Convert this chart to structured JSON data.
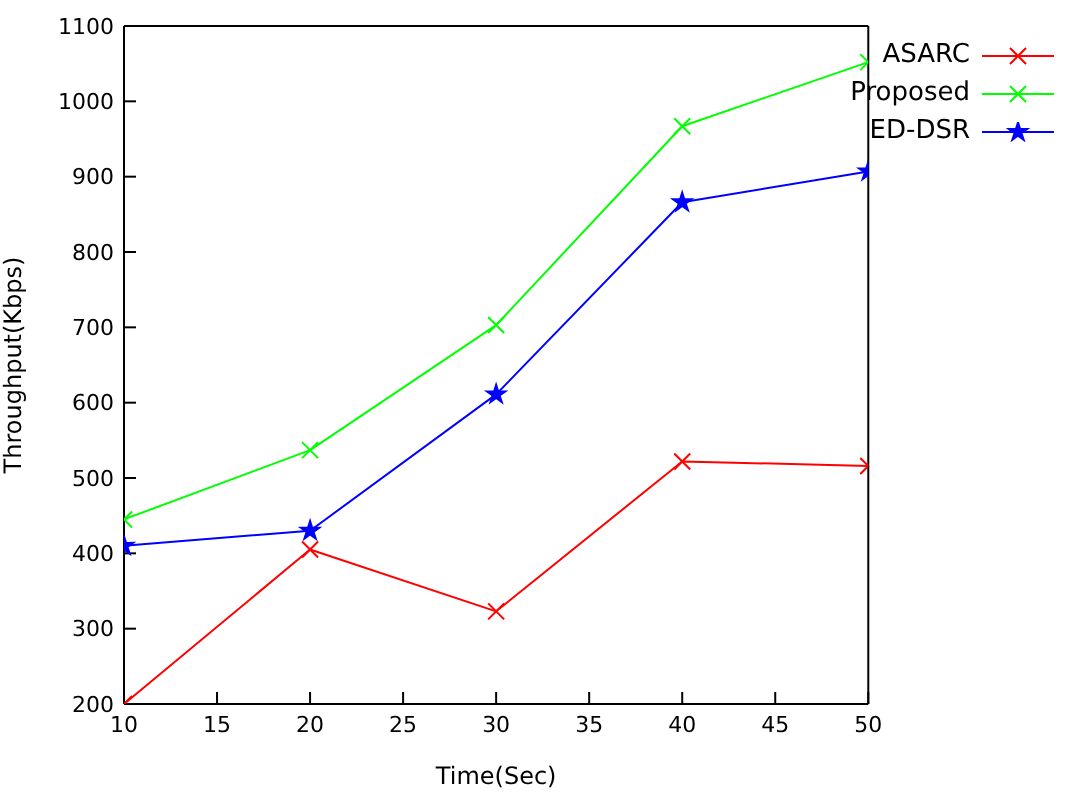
{
  "chart_data": {
    "type": "line",
    "xlabel": "Time(Sec)",
    "ylabel": "Throughput(Kbps)",
    "x": [
      10,
      20,
      30,
      40,
      50
    ],
    "xlim": [
      10,
      50
    ],
    "xticks": [
      10,
      15,
      20,
      25,
      30,
      35,
      40,
      45,
      50
    ],
    "ylim": [
      200,
      1100
    ],
    "yticks": [
      200,
      300,
      400,
      500,
      600,
      700,
      800,
      900,
      1000,
      1100
    ],
    "grid": false,
    "legend": "top right",
    "series": [
      {
        "name": "ASARC",
        "color": "#ff0000",
        "marker": "cross",
        "values": [
          200,
          405,
          323,
          522,
          516
        ]
      },
      {
        "name": "Proposed",
        "color": "#00ff00",
        "marker": "cross",
        "values": [
          445,
          537,
          703,
          967,
          1052
        ]
      },
      {
        "name": "ED-DSR",
        "color": "#0000ff",
        "marker": "star",
        "values": [
          410,
          430,
          611,
          866,
          907
        ]
      }
    ]
  }
}
